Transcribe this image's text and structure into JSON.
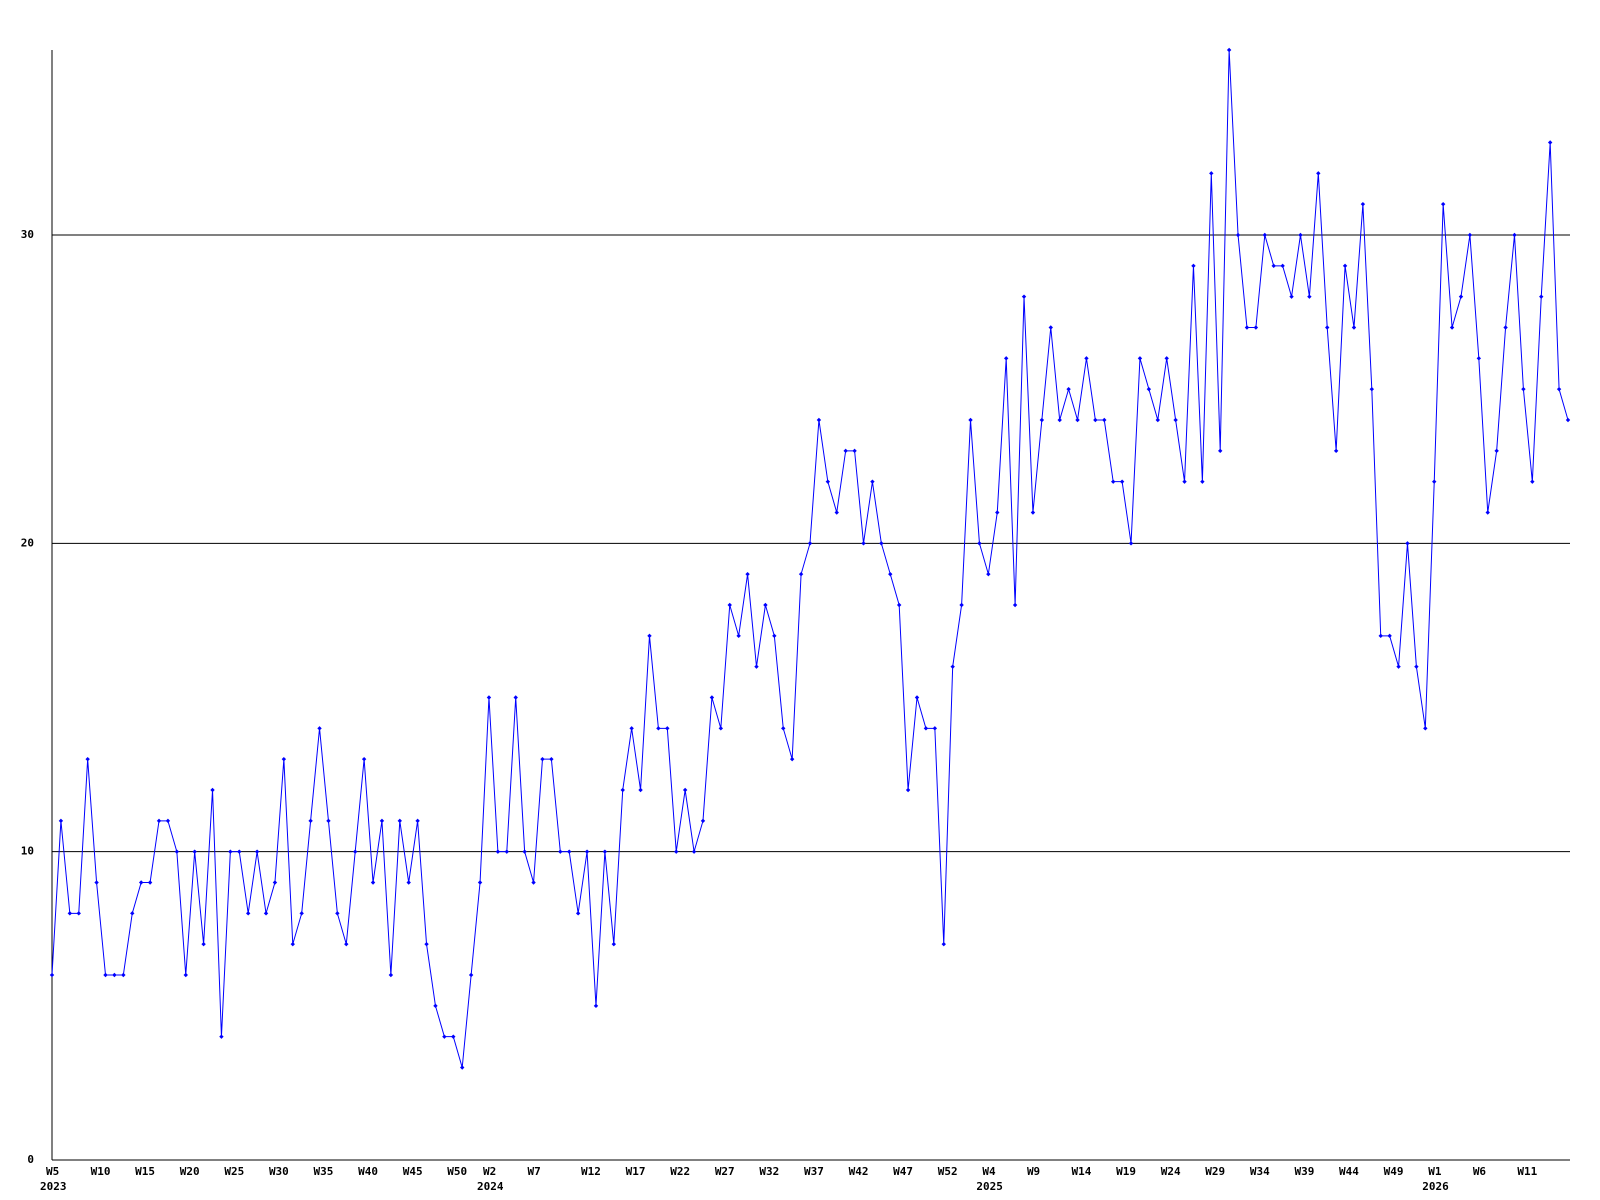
{
  "chart_data": {
    "type": "line",
    "categories": [
      "W5",
      null,
      null,
      null,
      null,
      "W10",
      null,
      null,
      null,
      null,
      "W15",
      null,
      null,
      null,
      null,
      "W20",
      null,
      null,
      null,
      null,
      "W25",
      null,
      null,
      null,
      null,
      "W30",
      null,
      null,
      null,
      null,
      "W35",
      null,
      null,
      null,
      null,
      "W40",
      null,
      null,
      null,
      null,
      "W45",
      null,
      null,
      null,
      null,
      "W50",
      null,
      null,
      null,
      "W2",
      null,
      null,
      null,
      null,
      "W7",
      null,
      null,
      null,
      null,
      null,
      "W12",
      null,
      null,
      null,
      null,
      "W17",
      null,
      null,
      null,
      null,
      "W22",
      null,
      null,
      null,
      null,
      "W27",
      null,
      null,
      null,
      null,
      "W32",
      null,
      null,
      null,
      null,
      "W37",
      null,
      null,
      null,
      null,
      "W42",
      null,
      null,
      null,
      null,
      "W47",
      null,
      null,
      null,
      null,
      "W52",
      null,
      null,
      null,
      null,
      "W4",
      null,
      null,
      null,
      null,
      "W9",
      null,
      null,
      null,
      null,
      "W14",
      null,
      null,
      null,
      null,
      "W19",
      null,
      null,
      null,
      null,
      "W24",
      null,
      null,
      null,
      null,
      "W29",
      null,
      null,
      null,
      null,
      "W34",
      null,
      null,
      null,
      null,
      "W39",
      null,
      null,
      null,
      null,
      "W44",
      null,
      null,
      null,
      null,
      "W49",
      null,
      null,
      null,
      null,
      "W1",
      null,
      null,
      null,
      null,
      "W6",
      null,
      null,
      null,
      null,
      "W11",
      null,
      null,
      null,
      null,
      null
    ],
    "category_years": [
      "2023",
      null,
      null,
      null,
      null,
      null,
      null,
      null,
      null,
      null,
      null,
      null,
      null,
      null,
      null,
      null,
      null,
      null,
      null,
      null,
      null,
      null,
      null,
      null,
      null,
      null,
      null,
      null,
      null,
      null,
      null,
      null,
      null,
      null,
      null,
      null,
      null,
      null,
      null,
      null,
      null,
      null,
      null,
      null,
      null,
      null,
      null,
      null,
      null,
      "2024",
      null,
      null,
      null,
      null,
      null,
      null,
      null,
      null,
      null,
      null,
      null,
      null,
      null,
      null,
      null,
      null,
      null,
      null,
      null,
      null,
      null,
      null,
      null,
      null,
      null,
      null,
      null,
      null,
      null,
      null,
      null,
      null,
      null,
      null,
      null,
      null,
      null,
      null,
      null,
      null,
      null,
      null,
      null,
      null,
      null,
      null,
      null,
      null,
      null,
      null,
      null,
      null,
      null,
      null,
      null,
      "2025",
      null,
      null,
      null,
      null,
      null,
      null,
      null,
      null,
      null,
      null,
      null,
      null,
      null,
      null,
      null,
      null,
      null,
      null,
      null,
      null,
      null,
      null,
      null,
      null,
      null,
      null,
      null,
      null,
      null,
      null,
      null,
      null,
      null,
      null,
      null,
      null,
      null,
      null,
      null,
      null,
      null,
      null,
      null,
      null,
      null,
      null,
      null,
      null,
      null,
      "2026",
      null,
      null,
      null,
      null,
      null,
      null,
      null,
      null,
      null,
      null,
      null,
      null,
      null,
      null,
      null
    ],
    "values": [
      6,
      11,
      8,
      8,
      13,
      9,
      6,
      6,
      6,
      8,
      9,
      9,
      11,
      11,
      10,
      6,
      10,
      7,
      12,
      4,
      10,
      10,
      8,
      10,
      8,
      9,
      13,
      7,
      8,
      11,
      14,
      11,
      8,
      7,
      10,
      13,
      9,
      11,
      6,
      11,
      9,
      11,
      7,
      5,
      4,
      4,
      3,
      6,
      9,
      15,
      10,
      10,
      15,
      10,
      9,
      13,
      13,
      10,
      10,
      8,
      10,
      5,
      10,
      7,
      12,
      14,
      12,
      17,
      14,
      14,
      10,
      12,
      10,
      11,
      15,
      14,
      18,
      17,
      19,
      16,
      18,
      17,
      14,
      13,
      19,
      20,
      24,
      22,
      21,
      23,
      23,
      20,
      22,
      20,
      19,
      18,
      12,
      15,
      14,
      14,
      7,
      16,
      18,
      24,
      20,
      19,
      21,
      26,
      18,
      28,
      21,
      24,
      27,
      24,
      25,
      24,
      26,
      24,
      24,
      22,
      22,
      20,
      26,
      25,
      24,
      26,
      24,
      22,
      29,
      22,
      32,
      23,
      36,
      30,
      27,
      27,
      30,
      29,
      29,
      28,
      30,
      28,
      32,
      27,
      23,
      29,
      27,
      31,
      25,
      17,
      17,
      16,
      20,
      16,
      14,
      22,
      31,
      27,
      28,
      30,
      26,
      21,
      23,
      27,
      30,
      25,
      22,
      28,
      33,
      25,
      24
    ],
    "color": "#0000ff",
    "ylim": [
      0,
      36
    ],
    "yticks": [
      0,
      10,
      20,
      30
    ],
    "grid": true
  }
}
